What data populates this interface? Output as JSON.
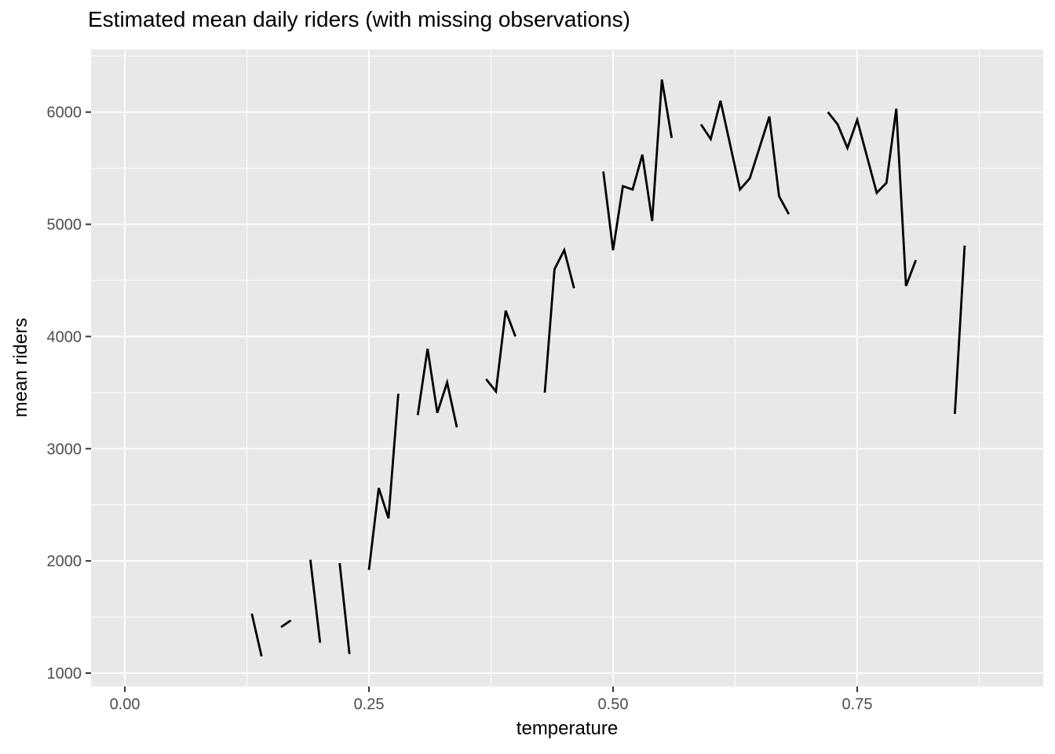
{
  "chart_data": {
    "type": "line",
    "title": "Estimated mean daily riders (with missing observations)",
    "xlabel": "temperature",
    "ylabel": "mean riders",
    "legend": "none",
    "grid": true,
    "xlim": [
      -0.0346,
      0.9405
    ],
    "ylim": [
      881,
      6558
    ],
    "x_ticks": {
      "values": [
        0,
        0.25,
        0.5,
        0.75
      ],
      "labels": [
        "0.00",
        "0.25",
        "0.50",
        "0.75"
      ]
    },
    "y_ticks": {
      "values": [
        1000,
        2000,
        3000,
        4000,
        5000,
        6000
      ],
      "labels": [
        "1000",
        "2000",
        "3000",
        "4000",
        "5000",
        "6000"
      ]
    },
    "x_minor": [
      0.125,
      0.375,
      0.625,
      0.875
    ],
    "y_minor": [
      1500,
      2500,
      3500,
      4500,
      5500,
      6500
    ],
    "series": [
      {
        "name": "estimated mean daily riders",
        "note": "line broken where observations are missing",
        "segments": [
          [
            [
              0.13,
              1530
            ],
            [
              0.14,
              1150
            ]
          ],
          [
            [
              0.16,
              1410
            ],
            [
              0.17,
              1470
            ]
          ],
          [
            [
              0.19,
              2010
            ],
            [
              0.2,
              1270
            ]
          ],
          [
            [
              0.22,
              1980
            ],
            [
              0.23,
              1170
            ]
          ],
          [
            [
              0.25,
              1920
            ],
            [
              0.26,
              2650
            ],
            [
              0.27,
              2380
            ],
            [
              0.28,
              3490
            ]
          ],
          [
            [
              0.3,
              3300
            ],
            [
              0.31,
              3890
            ],
            [
              0.32,
              3320
            ],
            [
              0.33,
              3590
            ],
            [
              0.34,
              3190
            ]
          ],
          [
            [
              0.37,
              3620
            ],
            [
              0.38,
              3510
            ],
            [
              0.39,
              4230
            ],
            [
              0.4,
              4000
            ]
          ],
          [
            [
              0.43,
              3500
            ],
            [
              0.44,
              4600
            ],
            [
              0.45,
              4770
            ],
            [
              0.46,
              4430
            ]
          ],
          [
            [
              0.49,
              5470
            ],
            [
              0.5,
              4770
            ],
            [
              0.51,
              5340
            ],
            [
              0.52,
              5310
            ],
            [
              0.53,
              5620
            ],
            [
              0.54,
              5030
            ],
            [
              0.55,
              6290
            ],
            [
              0.56,
              5770
            ]
          ],
          [
            [
              0.59,
              5890
            ],
            [
              0.6,
              5760
            ],
            [
              0.61,
              6100
            ],
            [
              0.63,
              5310
            ],
            [
              0.64,
              5410
            ],
            [
              0.66,
              5960
            ],
            [
              0.67,
              5250
            ],
            [
              0.68,
              5090
            ]
          ],
          [
            [
              0.72,
              6000
            ],
            [
              0.73,
              5890
            ],
            [
              0.74,
              5680
            ],
            [
              0.75,
              5930
            ],
            [
              0.77,
              5280
            ],
            [
              0.78,
              5370
            ],
            [
              0.79,
              6030
            ],
            [
              0.8,
              4450
            ],
            [
              0.81,
              4680
            ]
          ],
          [
            [
              0.85,
              3310
            ],
            [
              0.86,
              4810
            ]
          ]
        ]
      }
    ],
    "colors": {
      "panel_bg": "#E8E8E8",
      "grid": "#FFFFFF",
      "line": "#000000",
      "tick_text": "#4D4D4D",
      "tick_mark": "#333333",
      "title_text": "#000000"
    }
  }
}
